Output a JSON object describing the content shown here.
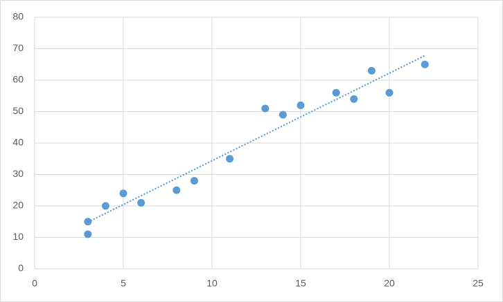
{
  "chart_data": {
    "type": "scatter",
    "x": [
      3,
      3,
      4,
      5,
      6,
      8,
      9,
      11,
      13,
      14,
      15,
      17,
      18,
      19,
      20,
      22
    ],
    "values": [
      15,
      11,
      20,
      24,
      21,
      25,
      28,
      35,
      51,
      49,
      52,
      56,
      54,
      63,
      56,
      65
    ],
    "color": "#5b9bd5",
    "trendline": "linear",
    "xlim": [
      0,
      25
    ],
    "xticks": [
      0,
      5,
      10,
      15,
      20,
      25
    ],
    "ylim": [
      0,
      80
    ],
    "yticks": [
      0,
      10,
      20,
      30,
      40,
      50,
      60,
      70,
      80
    ],
    "grid": true
  }
}
